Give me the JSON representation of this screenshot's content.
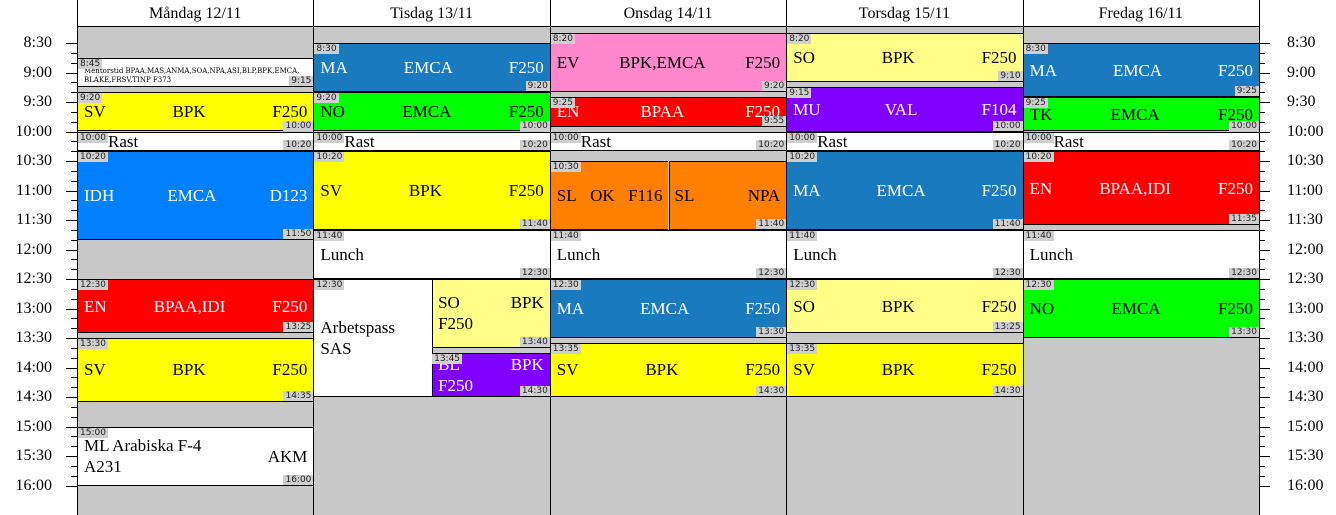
{
  "time_axis": [
    "8:30",
    "9:00",
    "9:30",
    "10:00",
    "10:30",
    "11:00",
    "11:30",
    "12:00",
    "12:30",
    "13:00",
    "13:30",
    "14:00",
    "14:30",
    "15:00",
    "15:30",
    "16:00"
  ],
  "days": [
    {
      "title": "Måndag 12/11",
      "events": [
        {
          "start": "8:45",
          "end": "9:15",
          "fields": [
            "Mentorstid BPAA,MAS,ANMA,SOA,NPA,ASI,BLP,BPK,EMCA, BLAKE,FRSV,TINP F373"
          ],
          "color": "#ffffff",
          "small": true
        },
        {
          "start": "9:20",
          "end": "10:00",
          "fields": [
            "SV",
            "BPK",
            "F250"
          ],
          "color": "#ffff00"
        },
        {
          "start": "10:00",
          "end": "10:20",
          "fields": [
            "Rast"
          ],
          "color": "#ffffff"
        },
        {
          "start": "10:20",
          "end": "11:50",
          "fields": [
            "IDH",
            "EMCA",
            "D123"
          ],
          "color": "#0080ff"
        },
        {
          "start": "12:30",
          "end": "13:25",
          "fields": [
            "EN",
            "BPAA,IDI",
            "F250"
          ],
          "color": "#ff0000"
        },
        {
          "start": "13:30",
          "end": "14:35",
          "fields": [
            "SV",
            "BPK",
            "F250"
          ],
          "color": "#ffff00"
        },
        {
          "start": "15:00",
          "end": "16:00",
          "fields": [
            "ML Arabiska F-4 A231",
            "AKM"
          ],
          "color": "#ffffff"
        }
      ]
    },
    {
      "title": "Tisdag 13/11",
      "events": [
        {
          "start": "8:30",
          "end": "9:20",
          "fields": [
            "MA",
            "EMCA",
            "F250"
          ],
          "color": "#1a7abf"
        },
        {
          "start": "9:20",
          "end": "10:00",
          "fields": [
            "NO",
            "EMCA",
            "F250"
          ],
          "color": "#00ff00"
        },
        {
          "start": "10:00",
          "end": "10:20",
          "fields": [
            "Rast"
          ],
          "color": "#ffffff"
        },
        {
          "start": "10:20",
          "end": "11:40",
          "fields": [
            "SV",
            "BPK",
            "F250"
          ],
          "color": "#ffff00"
        },
        {
          "start": "11:40",
          "end": "12:30",
          "fields": [
            "Lunch"
          ],
          "color": "#ffffff"
        },
        {
          "columns": [
            [
              {
                "start": "12:30",
                "fields": [
                  "Arbetspass SAS"
                ],
                "color": "#ffffff"
              }
            ],
            [
              {
                "end": "13:40",
                "fields": [
                  "SO",
                  "BPK",
                  "F250"
                ],
                "color": "#ffff88"
              },
              {
                "start": "13:45",
                "end": "14:30",
                "fields": [
                  "BL",
                  "BPK",
                  "F250"
                ],
                "color": "#8000ff"
              }
            ]
          ]
        }
      ]
    },
    {
      "title": "Onsdag 14/11",
      "events": [
        {
          "start": "8:20",
          "end": "9:20",
          "fields": [
            "EV",
            "BPK,EMCA",
            "F250"
          ],
          "color": "#ff88cc"
        },
        {
          "start": "9:25",
          "end": "9:55",
          "fields": [
            "EN",
            "BPAA",
            "F250"
          ],
          "color": "#ff0000"
        },
        {
          "start": "10:00",
          "end": "10:20",
          "fields": [
            "Rast"
          ],
          "color": "#ffffff"
        },
        {
          "start": "10:30",
          "end": "11:40",
          "columns": [
            [
              {
                "fields": [
                  "SL",
                  "OK",
                  "F116"
                ],
                "color": "#ff8000"
              }
            ],
            [
              {
                "fields": [
                  "SL",
                  "NPA"
                ],
                "color": "#ff8000"
              }
            ]
          ]
        },
        {
          "start": "11:40",
          "end": "12:30",
          "fields": [
            "Lunch"
          ],
          "color": "#ffffff"
        },
        {
          "start": "12:30",
          "end": "13:30",
          "fields": [
            "MA",
            "EMCA",
            "F250"
          ],
          "color": "#1a7abf"
        },
        {
          "start": "13:35",
          "end": "14:30",
          "fields": [
            "SV",
            "BPK",
            "F250"
          ],
          "color": "#ffff00"
        }
      ]
    },
    {
      "title": "Torsdag 15/11",
      "events": [
        {
          "start": "8:20",
          "end": "9:10",
          "fields": [
            "SO",
            "BPK",
            "F250"
          ],
          "color": "#ffff88"
        },
        {
          "start": "9:15",
          "end": "10:00",
          "fields": [
            "MU",
            "VAL",
            "F104"
          ],
          "color": "#8000ff"
        },
        {
          "start": "10:00",
          "end": "10:20",
          "fields": [
            "Rast"
          ],
          "color": "#ffffff"
        },
        {
          "start": "10:20",
          "end": "11:40",
          "fields": [
            "MA",
            "EMCA",
            "F250"
          ],
          "color": "#1a7abf"
        },
        {
          "start": "11:40",
          "end": "12:30",
          "fields": [
            "Lunch"
          ],
          "color": "#ffffff"
        },
        {
          "start": "12:30",
          "end": "13:25",
          "fields": [
            "SO",
            "BPK",
            "F250"
          ],
          "color": "#ffff88"
        },
        {
          "start": "13:35",
          "end": "14:30",
          "fields": [
            "SV",
            "BPK",
            "F250"
          ],
          "color": "#ffff00"
        }
      ]
    },
    {
      "title": "Fredag 16/11",
      "events": [
        {
          "start": "8:30",
          "end": "9:25",
          "fields": [
            "MA",
            "EMCA",
            "F250"
          ],
          "color": "#1a7abf"
        },
        {
          "start": "9:25",
          "end": "10:00",
          "fields": [
            "TK",
            "EMCA",
            "F250"
          ],
          "color": "#00ff00"
        },
        {
          "start": "10:00",
          "end": "10:20",
          "fields": [
            "Rast"
          ],
          "color": "#ffffff"
        },
        {
          "start": "10:20",
          "end": "11:35",
          "fields": [
            "EN",
            "BPAA,IDI",
            "F250"
          ],
          "color": "#ff0000"
        },
        {
          "start": "11:40",
          "end": "12:30",
          "fields": [
            "Lunch"
          ],
          "color": "#ffffff"
        },
        {
          "start": "12:30",
          "end": "13:30",
          "fields": [
            "NO",
            "EMCA",
            "F250"
          ],
          "color": "#00ff00"
        }
      ]
    }
  ]
}
